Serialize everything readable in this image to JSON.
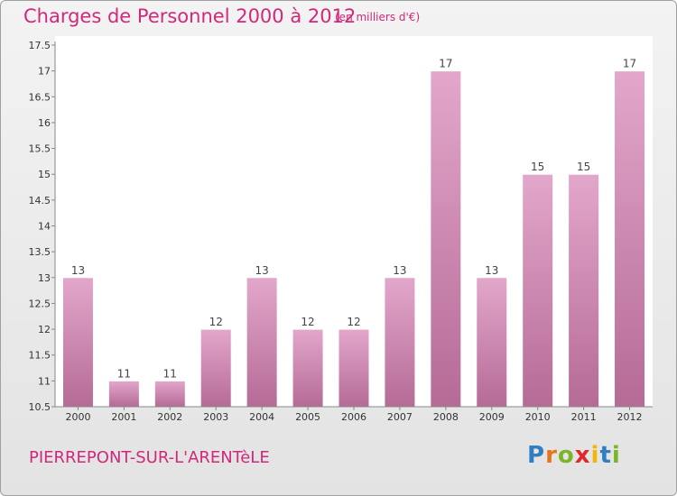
{
  "header": {
    "title": "Charges de Personnel 2000 à 2012",
    "subtitle": "(en milliers d'€)"
  },
  "footer": {
    "commune": "PIERREPONT-SUR-L'ARENTèLE",
    "logo": "Proxiti"
  },
  "colors": {
    "title": "#d0287a",
    "bar_top": "#e3a7cb",
    "bar_bottom": "#b56b96",
    "logo_letters": [
      "#2f7fc1",
      "#e8731a",
      "#7bb52a",
      "#e3262a",
      "#f2b705",
      "#2f7fc1",
      "#7bb52a"
    ]
  },
  "chart_data": {
    "type": "bar",
    "title": "Charges de Personnel 2000 à 2012",
    "subtitle": "(en milliers d'€)",
    "categories": [
      "2000",
      "2001",
      "2002",
      "2003",
      "2004",
      "2005",
      "2006",
      "2007",
      "2008",
      "2009",
      "2010",
      "2011",
      "2012"
    ],
    "values": [
      13,
      11,
      11,
      12,
      13,
      12,
      12,
      13,
      17,
      13,
      15,
      15,
      17
    ],
    "data_labels": [
      "13",
      "11",
      "11",
      "12",
      "13",
      "12",
      "12",
      "13",
      "17",
      "13",
      "15",
      "15",
      "17"
    ],
    "ylim": [
      10.5,
      17.5
    ],
    "yticks": [
      10.5,
      11,
      11.5,
      12,
      12.5,
      13,
      13.5,
      14,
      14.5,
      15,
      15.5,
      16,
      16.5,
      17,
      17.5
    ],
    "ytick_labels": [
      "10.5",
      "11",
      "11.5",
      "12",
      "12.5",
      "13",
      "13.5",
      "14",
      "14.5",
      "15",
      "15.5",
      "16",
      "16.5",
      "17",
      "17.5"
    ],
    "xlabel": "",
    "ylabel": "",
    "grid": false,
    "legend": "none"
  }
}
